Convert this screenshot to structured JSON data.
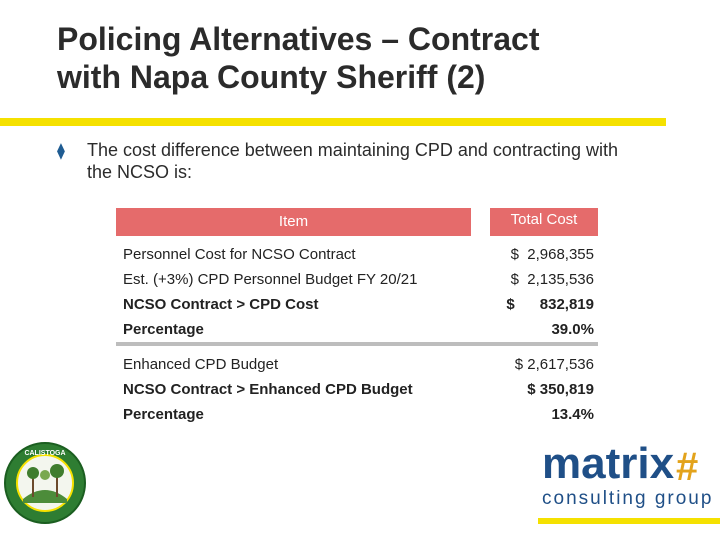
{
  "slide": {
    "title_line1": "Policing Alternatives – Contract",
    "title_line2": "with Napa County Sheriff (2)",
    "bullet_icon": "diamond-bullet-icon",
    "bullet_line1": "The cost difference between maintaining CPD and contracting with",
    "bullet_line2": "the NCSO is:"
  },
  "table": {
    "header_item": "Item",
    "header_total": "Total Cost",
    "rows": [
      {
        "label": "Personnel Cost for NCSO Contract",
        "value": "$  2,968,355",
        "bold": false
      },
      {
        "label": "Est. (+3%) CPD Personnel Budget FY 20/21",
        "value": "$  2,135,536",
        "bold": false
      },
      {
        "label": "NCSO Contract > CPD Cost",
        "value": "$      832,819",
        "bold": true
      },
      {
        "label": "Percentage",
        "value": "39.0%",
        "bold": true
      },
      {
        "label": "Enhanced CPD Budget",
        "value": "$ 2,617,536",
        "bold": false
      },
      {
        "label": "NCSO Contract > Enhanced CPD Budget",
        "value": "$ 350,819",
        "bold": true
      },
      {
        "label": "Percentage",
        "value": "13.4%",
        "bold": true
      }
    ]
  },
  "branding": {
    "logo_word": "matrix",
    "logo_mark": "#",
    "logo_tagline": "consulting group",
    "seal_text": "CITY OF CALISTOGA",
    "colors": {
      "accent_yellow": "#f5e100",
      "header_red": "#e56b6b",
      "brand_blue": "#1f4f87",
      "brand_gold": "#e3a31b",
      "bullet_blue": "#1f5c92"
    }
  }
}
